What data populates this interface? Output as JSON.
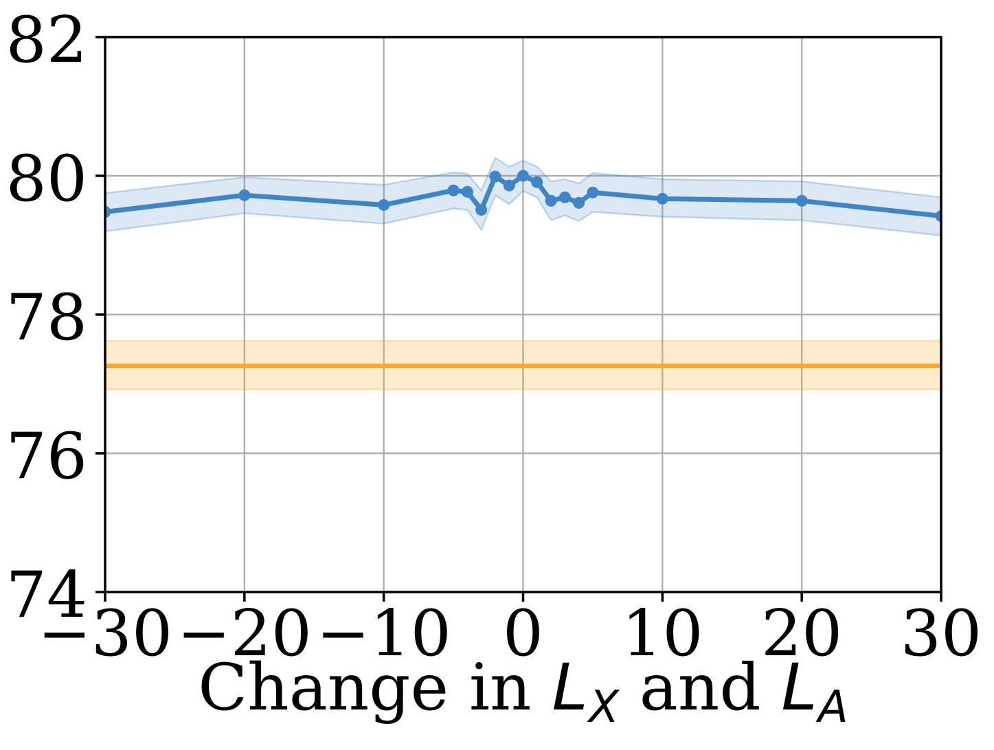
{
  "chart_data": {
    "type": "line",
    "title": "",
    "xlabel": "Change in L_X and L_A",
    "xlabel_parts": [
      {
        "text": "Change in ",
        "style": ""
      },
      {
        "text": "L",
        "style": "math"
      },
      {
        "text": "X",
        "style": "msub"
      },
      {
        "text": " and ",
        "style": ""
      },
      {
        "text": "L",
        "style": "math"
      },
      {
        "text": "A",
        "style": "msub"
      }
    ],
    "ylabel": "",
    "xlim": [
      -30,
      30
    ],
    "ylim": [
      74,
      82
    ],
    "grid": true,
    "legend": "none",
    "xticks": {
      "values": [
        -30,
        -20,
        -10,
        0,
        10,
        20,
        30
      ],
      "labels": [
        "−30",
        "−20",
        "−10",
        "0",
        "10",
        "20",
        "30"
      ]
    },
    "yticks": {
      "values": [
        82,
        80,
        78,
        76,
        74
      ],
      "labels": [
        "82",
        "80",
        "78",
        "76",
        "74"
      ]
    },
    "series": [
      {
        "name": "blue-line-with-band",
        "color": "#3d85c6",
        "marker": "circle",
        "x": [
          -30,
          -20,
          -10,
          -5,
          -4,
          -3,
          -2,
          -1,
          0,
          1,
          2,
          3,
          4,
          5,
          10,
          20,
          30
        ],
        "y": [
          79.48,
          79.72,
          79.58,
          79.79,
          79.77,
          79.51,
          79.99,
          79.86,
          80.0,
          79.91,
          79.64,
          79.69,
          79.61,
          79.76,
          79.67,
          79.64,
          79.42
        ],
        "upper": [
          79.75,
          79.98,
          79.87,
          80.05,
          80.03,
          79.79,
          80.26,
          80.13,
          80.22,
          80.13,
          79.92,
          79.95,
          79.89,
          80.04,
          79.95,
          79.92,
          79.69
        ],
        "lower": [
          79.2,
          79.46,
          79.31,
          79.53,
          79.51,
          79.22,
          79.72,
          79.59,
          79.78,
          79.69,
          79.36,
          79.43,
          79.35,
          79.48,
          79.41,
          79.36,
          79.14
        ]
      }
    ],
    "baseline": {
      "name": "orange-horizontal-baseline",
      "color": "#ffa726",
      "value": 77.26,
      "upper": 77.62,
      "lower": 76.92
    },
    "colors": {
      "grid": "#b0b0b0",
      "spine": "#000000",
      "background": "#ffffff",
      "blue_band_fill": "#3d85c6",
      "orange_band_fill": "#ffa726"
    }
  }
}
